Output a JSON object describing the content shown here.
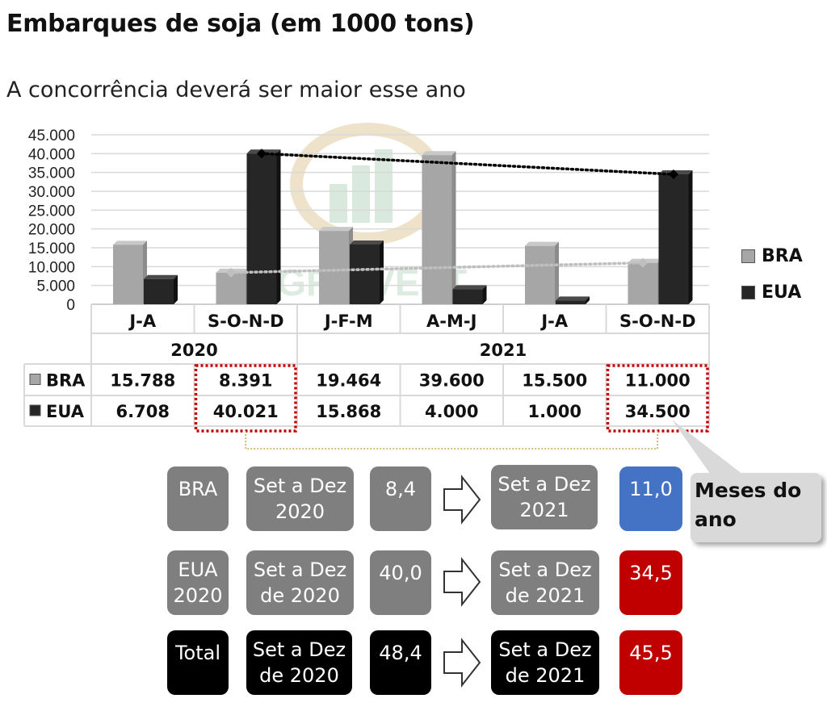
{
  "header": {
    "title": "Embarques de soja (em 1000 tons)",
    "subtitle": "A concorrência deverá ser maior esse ano"
  },
  "chart_data": {
    "type": "bar",
    "title": "",
    "xlabel": "",
    "ylabel": "",
    "ylim": [
      0,
      45000
    ],
    "yticks": [
      0,
      5000,
      10000,
      15000,
      20000,
      25000,
      30000,
      35000,
      40000,
      45000
    ],
    "ytick_labels": [
      "0",
      "5.000",
      "10.000",
      "15.000",
      "20.000",
      "25.000",
      "30.000",
      "35.000",
      "40.000",
      "45.000"
    ],
    "grid": true,
    "legend_position": "right",
    "categories": [
      "J-A",
      "S-O-N-D",
      "J-F-M",
      "A-M-J",
      "J-A",
      "S-O-N-D"
    ],
    "year_groups": [
      {
        "label": "2020",
        "span": 2
      },
      {
        "label": "2021",
        "span": 4
      }
    ],
    "series": [
      {
        "name": "BRA",
        "color": "#a6a6a6",
        "values": [
          15788,
          8391,
          19464,
          39600,
          15500,
          11000
        ],
        "labels": [
          "15.788",
          "8.391",
          "19.464",
          "39.600",
          "15.500",
          "11.000"
        ]
      },
      {
        "name": "EUA",
        "color": "#262626",
        "values": [
          6708,
          40021,
          15868,
          4000,
          1000,
          34500
        ],
        "labels": [
          "6.708",
          "40.021",
          "15.868",
          "4.000",
          "1.000",
          "34.500"
        ]
      }
    ],
    "trendlines": [
      {
        "series": "EUA",
        "from_category": 1,
        "to_category": 5,
        "style": "dotted",
        "color": "#000000"
      },
      {
        "series": "BRA",
        "from_category": 1,
        "to_category": 5,
        "style": "dotted",
        "color": "#bfbfbf"
      }
    ],
    "highlight_columns": [
      1,
      5
    ],
    "highlight_color": "#c00000",
    "watermark": "AGRINVEST commodities"
  },
  "comparison": {
    "rows": [
      {
        "label": "BRA",
        "period_from": "Set a Dez\n2020",
        "value_from": "8,4",
        "period_to": "Set a Dez\n2021",
        "value_to": "11,0",
        "color": "gray",
        "to_color": "blue"
      },
      {
        "label": "EUA\n2020",
        "period_from": "Set a Dez\nde 2020",
        "value_from": "40,0",
        "period_to": "Set a Dez\nde 2021",
        "value_to": "34,5",
        "color": "gray",
        "to_color": "red"
      },
      {
        "label": "Total",
        "period_from": "Set a Dez\nde 2020",
        "value_from": "48,4",
        "period_to": "Set a Dez\nde 2021",
        "value_to": "45,5",
        "color": "black",
        "to_color": "red"
      }
    ],
    "callout": "Meses do\nano"
  }
}
